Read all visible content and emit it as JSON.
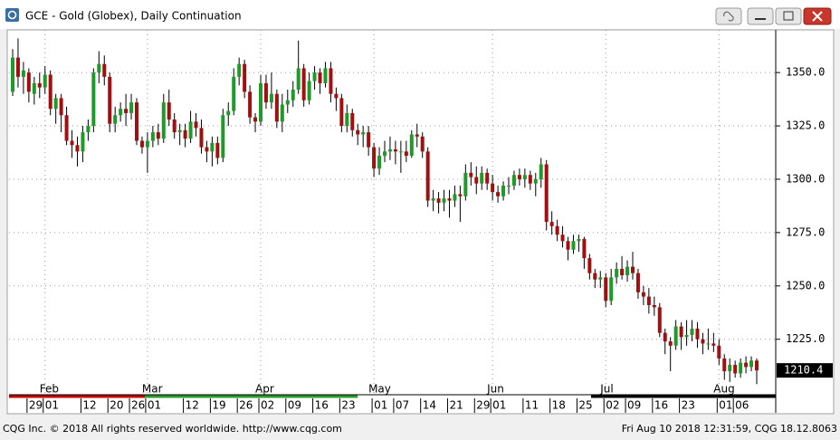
{
  "chart_data": {
    "type": "candlestick",
    "title": "GCE - Gold (Globex), Daily Continuation",
    "ohlc": [
      [
        1341,
        1361,
        1339,
        1357
      ],
      [
        1357,
        1366,
        1343,
        1348
      ],
      [
        1348,
        1355,
        1340,
        1351
      ],
      [
        1350,
        1352,
        1336,
        1341
      ],
      [
        1340,
        1348,
        1335,
        1345
      ],
      [
        1345,
        1350,
        1338,
        1343
      ],
      [
        1343,
        1353,
        1340,
        1349
      ],
      [
        1349,
        1351,
        1330,
        1333
      ],
      [
        1333,
        1340,
        1326,
        1338
      ],
      [
        1338,
        1340,
        1322,
        1330
      ],
      [
        1330,
        1334,
        1316,
        1318
      ],
      [
        1318,
        1323,
        1310,
        1316
      ],
      [
        1316,
        1320,
        1306,
        1313
      ],
      [
        1313,
        1325,
        1308,
        1322
      ],
      [
        1322,
        1328,
        1318,
        1325
      ],
      [
        1325,
        1352,
        1322,
        1350
      ],
      [
        1350,
        1360,
        1345,
        1354
      ],
      [
        1354,
        1358,
        1344,
        1348
      ],
      [
        1348,
        1350,
        1322,
        1326
      ],
      [
        1326,
        1334,
        1322,
        1330
      ],
      [
        1330,
        1336,
        1327,
        1333
      ],
      [
        1333,
        1340,
        1325,
        1331
      ],
      [
        1331,
        1340,
        1328,
        1336
      ],
      [
        1336,
        1338,
        1316,
        1318
      ],
      [
        1318,
        1320,
        1312,
        1315
      ],
      [
        1315,
        1322,
        1303,
        1318
      ],
      [
        1318,
        1325,
        1315,
        1322
      ],
      [
        1322,
        1326,
        1316,
        1319
      ],
      [
        1319,
        1340,
        1317,
        1336
      ],
      [
        1336,
        1342,
        1325,
        1328
      ],
      [
        1328,
        1331,
        1319,
        1322
      ],
      [
        1322,
        1326,
        1316,
        1323
      ],
      [
        1323,
        1326,
        1315,
        1319
      ],
      [
        1319,
        1332,
        1317,
        1327
      ],
      [
        1327,
        1331,
        1320,
        1324
      ],
      [
        1324,
        1328,
        1312,
        1315
      ],
      [
        1315,
        1318,
        1308,
        1313
      ],
      [
        1313,
        1320,
        1306,
        1317
      ],
      [
        1317,
        1320,
        1307,
        1310
      ],
      [
        1310,
        1333,
        1308,
        1330
      ],
      [
        1330,
        1336,
        1325,
        1332
      ],
      [
        1332,
        1352,
        1330,
        1348
      ],
      [
        1348,
        1357,
        1344,
        1354
      ],
      [
        1354,
        1356,
        1338,
        1341
      ],
      [
        1341,
        1344,
        1326,
        1329
      ],
      [
        1329,
        1331,
        1322,
        1327
      ],
      [
        1327,
        1349,
        1325,
        1345
      ],
      [
        1345,
        1349,
        1333,
        1336
      ],
      [
        1336,
        1350,
        1333,
        1340
      ],
      [
        1340,
        1342,
        1324,
        1327
      ],
      [
        1327,
        1340,
        1322,
        1335
      ],
      [
        1335,
        1342,
        1331,
        1337
      ],
      [
        1337,
        1346,
        1334,
        1342
      ],
      [
        1342,
        1365,
        1340,
        1352
      ],
      [
        1352,
        1354,
        1334,
        1337
      ],
      [
        1337,
        1350,
        1335,
        1346
      ],
      [
        1346,
        1353,
        1342,
        1350
      ],
      [
        1350,
        1352,
        1340,
        1345
      ],
      [
        1345,
        1355,
        1343,
        1352
      ],
      [
        1352,
        1355,
        1336,
        1340
      ],
      [
        1340,
        1343,
        1332,
        1338
      ],
      [
        1338,
        1340,
        1322,
        1325
      ],
      [
        1325,
        1335,
        1322,
        1331
      ],
      [
        1331,
        1333,
        1320,
        1323
      ],
      [
        1323,
        1326,
        1316,
        1321
      ],
      [
        1321,
        1325,
        1315,
        1322
      ],
      [
        1322,
        1325,
        1311,
        1315
      ],
      [
        1315,
        1317,
        1301,
        1305
      ],
      [
        1305,
        1315,
        1302,
        1311
      ],
      [
        1311,
        1318,
        1308,
        1313
      ],
      [
        1313,
        1320,
        1309,
        1314
      ],
      [
        1314,
        1318,
        1307,
        1313
      ],
      [
        1313,
        1318,
        1303,
        1313
      ],
      [
        1313,
        1318,
        1308,
        1311
      ],
      [
        1311,
        1323,
        1310,
        1321
      ],
      [
        1321,
        1326,
        1315,
        1320
      ],
      [
        1320,
        1322,
        1310,
        1313
      ],
      [
        1313,
        1315,
        1287,
        1290
      ],
      [
        1290,
        1295,
        1285,
        1291
      ],
      [
        1291,
        1294,
        1284,
        1289
      ],
      [
        1289,
        1295,
        1285,
        1291
      ],
      [
        1291,
        1295,
        1282,
        1290
      ],
      [
        1290,
        1297,
        1287,
        1293
      ],
      [
        1293,
        1297,
        1280,
        1292
      ],
      [
        1292,
        1307,
        1290,
        1303
      ],
      [
        1303,
        1308,
        1297,
        1301
      ],
      [
        1301,
        1306,
        1293,
        1298
      ],
      [
        1298,
        1306,
        1295,
        1303
      ],
      [
        1303,
        1305,
        1295,
        1298
      ],
      [
        1298,
        1302,
        1290,
        1294
      ],
      [
        1294,
        1297,
        1289,
        1292
      ],
      [
        1292,
        1299,
        1290,
        1297
      ],
      [
        1297,
        1301,
        1293,
        1297
      ],
      [
        1297,
        1304,
        1295,
        1302
      ],
      [
        1302,
        1305,
        1297,
        1300
      ],
      [
        1300,
        1305,
        1296,
        1302
      ],
      [
        1302,
        1304,
        1295,
        1298
      ],
      [
        1298,
        1303,
        1292,
        1300
      ],
      [
        1300,
        1310,
        1296,
        1307
      ],
      [
        1307,
        1309,
        1276,
        1280
      ],
      [
        1280,
        1285,
        1274,
        1278
      ],
      [
        1278,
        1281,
        1271,
        1274
      ],
      [
        1274,
        1278,
        1268,
        1271
      ],
      [
        1271,
        1273,
        1262,
        1267
      ],
      [
        1267,
        1274,
        1265,
        1271
      ],
      [
        1271,
        1274,
        1266,
        1272
      ],
      [
        1272,
        1273,
        1258,
        1263
      ],
      [
        1263,
        1265,
        1253,
        1256
      ],
      [
        1256,
        1258,
        1249,
        1253
      ],
      [
        1253,
        1257,
        1249,
        1254
      ],
      [
        1254,
        1256,
        1240,
        1243
      ],
      [
        1243,
        1258,
        1241,
        1254
      ],
      [
        1254,
        1261,
        1251,
        1258
      ],
      [
        1258,
        1264,
        1253,
        1255
      ],
      [
        1255,
        1262,
        1252,
        1259
      ],
      [
        1259,
        1266,
        1253,
        1256
      ],
      [
        1256,
        1258,
        1244,
        1247
      ],
      [
        1247,
        1250,
        1241,
        1245
      ],
      [
        1245,
        1249,
        1237,
        1241
      ],
      [
        1241,
        1245,
        1236,
        1240
      ],
      [
        1240,
        1242,
        1226,
        1228
      ],
      [
        1228,
        1230,
        1218,
        1224
      ],
      [
        1224,
        1226,
        1210,
        1222
      ],
      [
        1222,
        1234,
        1220,
        1231
      ],
      [
        1231,
        1233,
        1220,
        1226
      ],
      [
        1226,
        1234,
        1222,
        1227
      ],
      [
        1227,
        1234,
        1224,
        1230
      ],
      [
        1230,
        1233,
        1221,
        1225
      ],
      [
        1225,
        1228,
        1218,
        1223
      ],
      [
        1223,
        1230,
        1220,
        1223
      ],
      [
        1223,
        1228,
        1219,
        1222
      ],
      [
        1222,
        1225,
        1213,
        1216
      ],
      [
        1216,
        1218,
        1206,
        1210
      ],
      [
        1210,
        1216,
        1205,
        1213
      ],
      [
        1213,
        1215,
        1207,
        1209
      ],
      [
        1209,
        1216,
        1207,
        1214
      ],
      [
        1214,
        1217,
        1209,
        1212
      ],
      [
        1212,
        1217,
        1210,
        1215
      ],
      [
        1215,
        1216,
        1204,
        1210.4
      ]
    ],
    "categories": [
      null,
      null,
      null,
      "29",
      null,
      null,
      "01",
      null,
      null,
      null,
      null,
      null,
      null,
      "12",
      null,
      null,
      null,
      null,
      "20",
      null,
      null,
      null,
      "26",
      null,
      null,
      "01",
      null,
      null,
      null,
      null,
      null,
      null,
      "12",
      null,
      null,
      null,
      null,
      "19",
      null,
      null,
      null,
      null,
      "26",
      null,
      null,
      null,
      "02",
      null,
      null,
      null,
      null,
      "09",
      null,
      null,
      null,
      null,
      "16",
      null,
      null,
      null,
      null,
      "23",
      null,
      null,
      null,
      null,
      null,
      "01",
      null,
      null,
      null,
      "07",
      null,
      null,
      null,
      null,
      "14",
      null,
      null,
      null,
      null,
      "21",
      null,
      null,
      null,
      null,
      "29",
      null,
      null,
      "01",
      null,
      null,
      null,
      null,
      null,
      "11",
      null,
      null,
      null,
      null,
      "18",
      null,
      null,
      null,
      null,
      "25",
      null,
      null,
      null,
      null,
      "02",
      null,
      null,
      null,
      "09",
      null,
      null,
      null,
      null,
      "16",
      null,
      null,
      null,
      null,
      "23",
      null,
      null,
      null,
      null,
      null,
      null,
      "01",
      null,
      null,
      "06",
      null,
      null,
      null,
      null
    ],
    "months": [
      {
        "value": 6,
        "label": "Feb"
      },
      {
        "value": 25,
        "label": "Mar"
      },
      {
        "value": 46,
        "label": "Apr"
      },
      {
        "value": 67,
        "label": "May"
      },
      {
        "value": 89,
        "label": "Jun"
      },
      {
        "value": 110,
        "label": "Jul"
      },
      {
        "value": 131,
        "label": "Aug"
      }
    ],
    "ylim": [
      1199,
      1370
    ],
    "yticks": [
      {
        "value": 1225,
        "label": "1225.0"
      },
      {
        "value": 1250,
        "label": "1250.0"
      },
      {
        "value": 1275,
        "label": "1275.0"
      },
      {
        "value": 1300,
        "label": "1300.0"
      },
      {
        "value": 1325,
        "label": "1325.0"
      },
      {
        "value": 1350,
        "label": "1350.0"
      }
    ],
    "grid": true,
    "up_color": "#1f9a2a",
    "down_color": "#a01010"
  },
  "footer": {
    "left": "CQG Inc. © 2018 All rights reserved worldwide. http://www.cqg.com",
    "right": "Fri Aug 10 2018 12:31:59, CQG 18.12.8063"
  }
}
